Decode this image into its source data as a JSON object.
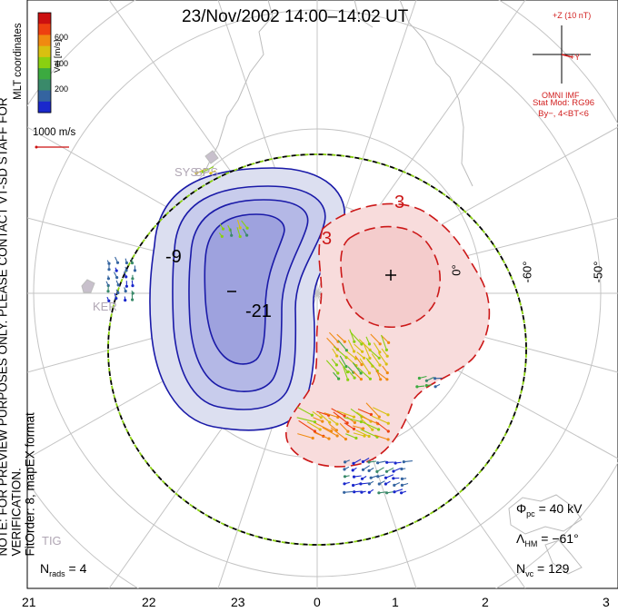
{
  "title": "23/Nov/2002 14:00–14:02 UT",
  "side_note_line1": "NOTE: FOR PREVIEW PURPOSES ONLY. PLEASE CONTACT VT-SD STAFF FOR VERIFICATION.",
  "side_note_line2": "FitOrder: 8, mapEX format",
  "coord_label": "MLT coordinates",
  "colorbar": {
    "title": "Vel [m/s]",
    "ticks": [
      "600",
      "400",
      "200"
    ],
    "colors": [
      "#cc1010",
      "#ee4010",
      "#f08a10",
      "#d8c010",
      "#8ad010",
      "#3caa40",
      "#3a8a6a",
      "#3464a0",
      "#1a28cc"
    ]
  },
  "vector_scale_label": "1000 m/s",
  "imf": {
    "z_label": "+Z (10 nT)",
    "y_label": "+Y",
    "caption": "OMNI IMF"
  },
  "stat_model": {
    "line1": "Stat Mod: RG96",
    "line2": "By−, 4<BT<6"
  },
  "contour_labels": {
    "neg_outer": "-9",
    "neg_inner": "-21",
    "pos_outer": "3",
    "pos_inner": "3"
  },
  "extrema": {
    "min_symbol": "–",
    "max_symbol": "+"
  },
  "lat_labels": [
    "-60°",
    "-50°"
  ],
  "lat_label_partial": "0°",
  "sites": [
    "SYS",
    "SPS",
    "KER",
    "TIG"
  ],
  "stats": {
    "phi_pc": {
      "symbol": "Φ",
      "sub": "pc",
      "value": " = 40 kV"
    },
    "lambda_hm": {
      "symbol": "Λ",
      "sub": "HM",
      "value": " = −61°"
    },
    "n_vc": {
      "symbol": "N",
      "sub": "vc",
      "value": " = 129"
    },
    "n_rads": {
      "symbol": "N",
      "sub": "rads",
      "value": " = 4"
    }
  },
  "hour_labels": [
    "21",
    "22",
    "23",
    "0",
    "1",
    "2",
    "3"
  ],
  "colors": {
    "negative_contour": "#1a1aa8",
    "positive_contour": "#cc1818",
    "hmb": "#000000",
    "hmb_dash": "#8ad010",
    "grid": "#c0c0c0",
    "coast": "#b8b8b8"
  }
}
